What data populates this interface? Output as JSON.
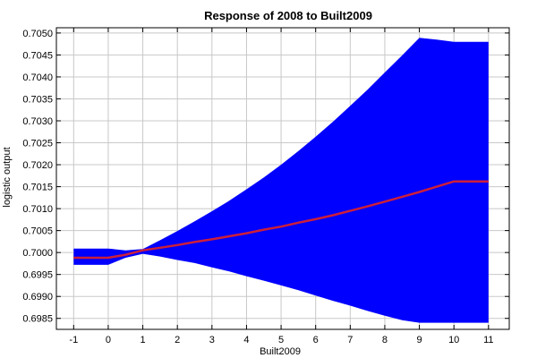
{
  "chart_data": {
    "type": "area",
    "title": "Response of 2008 to Built2009",
    "xlabel": "Built2009",
    "ylabel": "logistic output",
    "xlim": [
      -1.5,
      11.6
    ],
    "ylim": [
      0.69825,
      0.70512
    ],
    "xticks": [
      -1,
      0,
      1,
      2,
      3,
      4,
      5,
      6,
      7,
      8,
      9,
      10,
      11
    ],
    "yticks": [
      "0.6985",
      "0.6990",
      "0.6995",
      "0.7000",
      "0.7005",
      "0.7010",
      "0.7015",
      "0.7020",
      "0.7025",
      "0.7030",
      "0.7035",
      "0.7040",
      "0.7045",
      "0.7050"
    ],
    "grid": true,
    "colors": {
      "band": "#0000ff",
      "line": "#cc1f3a",
      "grid": "#c8c8c8",
      "axis": "#000000"
    },
    "series": [
      {
        "kind": "line",
        "x": [
          -1,
          -0.5,
          0,
          0.5,
          1,
          1.5,
          2,
          2.5,
          3,
          3.5,
          4,
          4.5,
          5,
          5.5,
          6,
          6.5,
          7,
          7.5,
          8,
          8.5,
          9,
          9.5,
          10,
          10.5,
          11
        ],
        "y": [
          0.69988,
          0.69988,
          0.69988,
          0.69995,
          0.70005,
          0.70011,
          0.70017,
          0.70024,
          0.7003,
          0.70037,
          0.70044,
          0.70052,
          0.70059,
          0.70068,
          0.70076,
          0.70085,
          0.70095,
          0.70105,
          0.70116,
          0.70127,
          0.70138,
          0.7015,
          0.70162,
          0.70162,
          0.70162
        ]
      },
      {
        "kind": "band",
        "x": [
          -1,
          -0.5,
          0,
          0.5,
          1,
          1.5,
          2,
          2.5,
          3,
          3.5,
          4,
          4.5,
          5,
          5.5,
          6,
          6.5,
          7,
          7.5,
          8,
          8.5,
          9,
          9.5,
          10,
          10.5,
          11
        ],
        "upper": [
          0.70009,
          0.70009,
          0.70009,
          0.70005,
          0.70008,
          0.70028,
          0.70049,
          0.70071,
          0.70094,
          0.70118,
          0.70144,
          0.70171,
          0.702,
          0.70231,
          0.70264,
          0.70298,
          0.70334,
          0.70371,
          0.7041,
          0.70449,
          0.70489,
          0.70485,
          0.7048,
          0.7048,
          0.7048
        ],
        "lower": [
          0.69972,
          0.69972,
          0.69972,
          0.69988,
          0.69997,
          0.69991,
          0.69983,
          0.69976,
          0.69966,
          0.69957,
          0.69946,
          0.69936,
          0.69925,
          0.69914,
          0.69902,
          0.6989,
          0.69879,
          0.69867,
          0.69856,
          0.69846,
          0.6984,
          0.6984,
          0.6984,
          0.6984,
          0.6984
        ]
      }
    ]
  }
}
